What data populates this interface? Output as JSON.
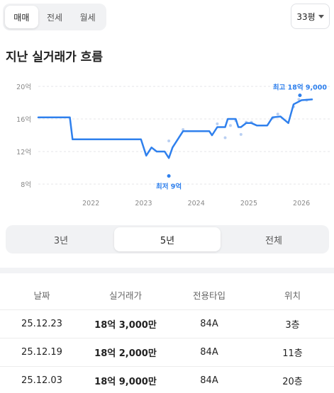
{
  "deal_tabs": [
    {
      "label": "매매",
      "active": true
    },
    {
      "label": "전세",
      "active": false
    },
    {
      "label": "월세",
      "active": false
    }
  ],
  "size_select": {
    "value": "33평"
  },
  "section_title": "지난 실거래가 흐름",
  "chart_data": {
    "type": "line",
    "title": "",
    "xlabel": "",
    "ylabel": "",
    "x_ticks": [
      "2022",
      "2023",
      "2024",
      "2025",
      "2026"
    ],
    "y_ticks": [
      "8억",
      "12억",
      "16억",
      "20억"
    ],
    "ylim": [
      8,
      20
    ],
    "xlim": [
      2021.0,
      2026.2
    ],
    "grid": "horizontal dashed",
    "line_color": "#2f80ed",
    "point_color": "#b9cff2",
    "series": [
      {
        "values": [
          [
            2021.0,
            16.2
          ],
          [
            2021.6,
            16.2
          ],
          [
            2021.65,
            13.5
          ],
          [
            2022.95,
            13.5
          ],
          [
            2023.05,
            11.5
          ],
          [
            2023.15,
            12.5
          ],
          [
            2023.25,
            12.0
          ],
          [
            2023.4,
            12.0
          ],
          [
            2023.48,
            11.2
          ],
          [
            2023.55,
            12.5
          ],
          [
            2023.75,
            14.5
          ],
          [
            2024.25,
            14.5
          ],
          [
            2024.3,
            14.0
          ],
          [
            2024.4,
            15.0
          ],
          [
            2024.55,
            15.0
          ],
          [
            2024.6,
            16.0
          ],
          [
            2024.75,
            16.0
          ],
          [
            2024.8,
            15.0
          ],
          [
            2024.85,
            15.0
          ],
          [
            2024.95,
            15.5
          ],
          [
            2025.05,
            15.5
          ],
          [
            2025.15,
            15.2
          ],
          [
            2025.35,
            15.2
          ],
          [
            2025.45,
            16.2
          ],
          [
            2025.6,
            16.3
          ],
          [
            2025.75,
            15.5
          ],
          [
            2025.85,
            17.8
          ],
          [
            2026.0,
            18.3
          ],
          [
            2026.2,
            18.4
          ]
        ]
      }
    ],
    "points": [
      [
        2023.48,
        13.3
      ],
      [
        2023.75,
        14.7
      ],
      [
        2024.4,
        15.4
      ],
      [
        2024.55,
        13.7
      ],
      [
        2024.65,
        15.2
      ],
      [
        2024.75,
        15.8
      ],
      [
        2024.85,
        14.1
      ],
      [
        2024.95,
        15.6
      ],
      [
        2025.05,
        15.6
      ],
      [
        2025.45,
        16.1
      ],
      [
        2025.55,
        16.6
      ],
      [
        2025.85,
        17.5
      ],
      [
        2025.95,
        18.4
      ],
      [
        2026.1,
        18.3
      ]
    ],
    "annotations": [
      {
        "text": "최고 18억 9,000",
        "x": 2025.97,
        "y": 18.9,
        "placement": "above"
      },
      {
        "text": "최저 9억",
        "x": 2023.48,
        "y": 9.0,
        "placement": "below"
      }
    ]
  },
  "period_tabs": [
    {
      "label": "3년",
      "active": false
    },
    {
      "label": "5년",
      "active": true
    },
    {
      "label": "전체",
      "active": false
    }
  ],
  "table": {
    "headers": [
      "날짜",
      "실거래가",
      "전용타입",
      "위치"
    ],
    "rows": [
      [
        "25.12.23",
        "18억 3,000만",
        "84A",
        "3층"
      ],
      [
        "25.12.19",
        "18억 2,000만",
        "84A",
        "11층"
      ],
      [
        "25.12.03",
        "18억 9,000만",
        "84A",
        "20층"
      ]
    ]
  }
}
